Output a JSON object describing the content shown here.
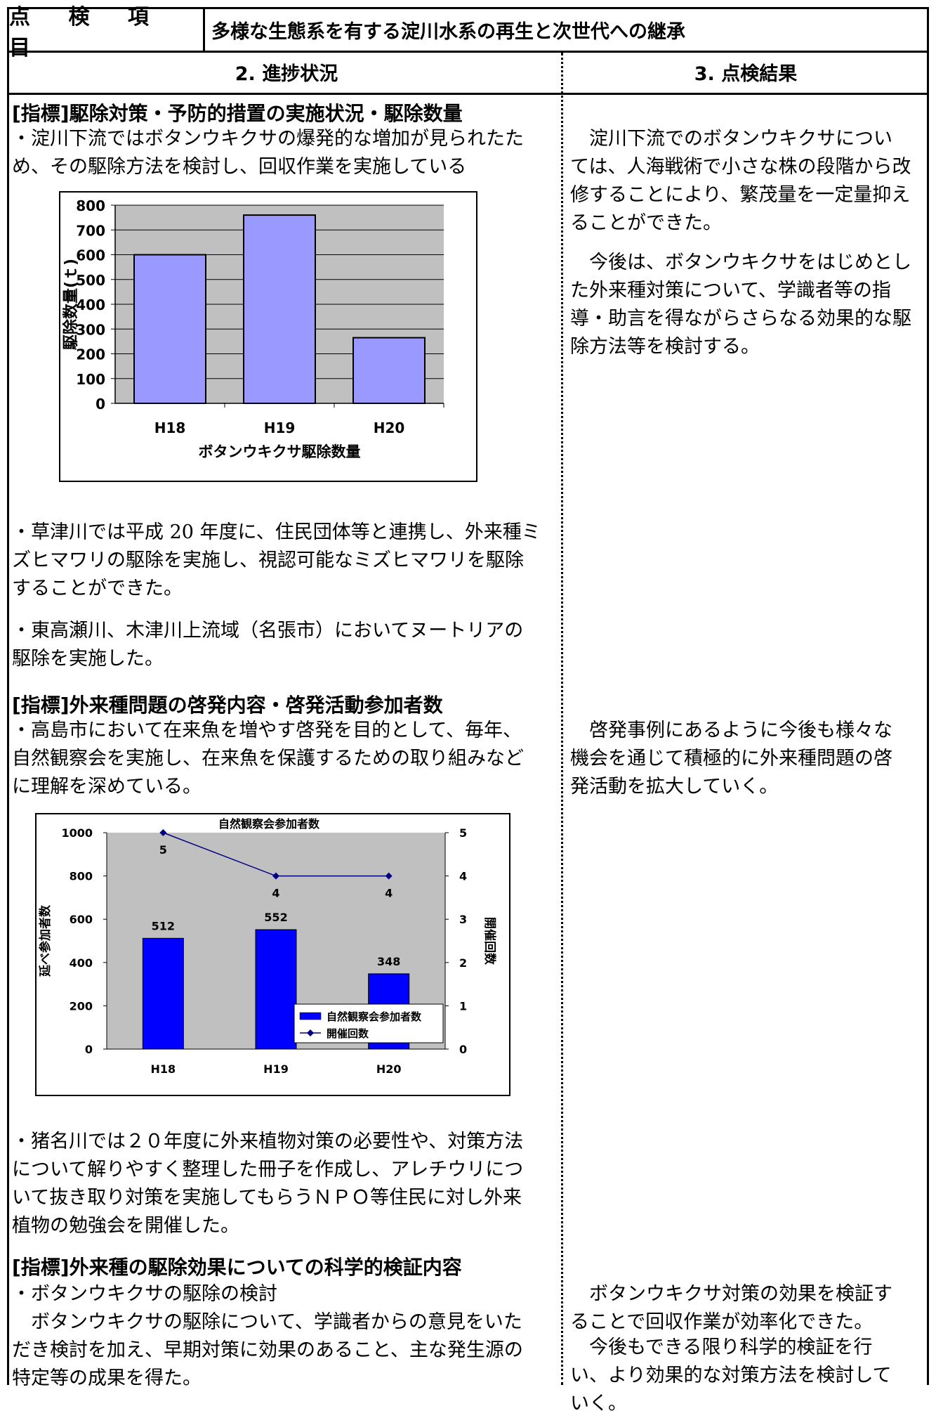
{
  "header": {
    "item_label": "点 検 項 目",
    "item_title": "多様な生態系を有する淀川水系の再生と次世代への継承",
    "col_progress": "2. 進捗状況",
    "col_result": "3. 点検結果"
  },
  "sections": [
    {
      "heading": "[指標]駆除対策・予防的措置の実施状況・駆除数量",
      "text1": "・淀川下流ではボタンウキクサの爆発的な増加が見られたた\nめ、その駆除方法を検討し、回収作業を実施している",
      "text2": "・草津川では平成 20 年度に、住民団体等と連携し、外来種ミ\nズヒマワリの駆除を実施し、視認可能なミズヒマワリを駆除\nすることができた。",
      "text3": "・東高瀬川、木津川上流域（名張市）においてヌートリアの\n駆除を実施した。",
      "result1": "　淀川下流でのボタンウキクサについ\nては、人海戦術で小さな株の段階から改\n修することにより、繁茂量を一定量抑え\nることができた。",
      "result2": "　今後は、ボタンウキクサをはじめとし\nた外来種対策について、学識者等の指\n導・助言を得ながらさらなる効果的な駆\n除方法等を検討する。"
    },
    {
      "heading": "[指標]外来種問題の啓発内容・啓発活動参加者数",
      "text1": "・高島市において在来魚を増やす啓発を目的として、毎年、\n自然観察会を実施し、在来魚を保護するための取り組みなど\nに理解を深めている。",
      "text2": "・猪名川では２０年度に外来植物対策の必要性や、対策方法\nについて解りやすく整理した冊子を作成し、アレチウリにつ\nいて抜き取り対策を実施してもらうＮＰＯ等住民に対し外来\n植物の勉強会を開催した。",
      "result1": "　啓発事例にあるように今後も様々な\n機会を通じて積極的に外来種問題の啓\n発活動を拡大していく。"
    },
    {
      "heading": "[指標]外来種の駆除効果についての科学的検証内容",
      "text1": "・ボタンウキクサの駆除の検討\n　ボタンウキクサの駆除について、学識者からの意見をいた\nだき検討を加え、早期対策に効果のあること、主な発生源の\n特定等の成果を得た。",
      "result1": "　ボタンウキクサ対策の効果を検証す\nることで回収作業が効率化できた。",
      "result2": "　今後もできる限り科学的検証を行\nい、より効果的な対策方法を検討して\nいく。"
    }
  ],
  "chart_data": [
    {
      "type": "bar",
      "title": "",
      "xlabel": "ボタンウキクサ駆除数量",
      "ylabel": "駆除数量(ｔ)",
      "categories": [
        "H18",
        "H19",
        "H20"
      ],
      "values": [
        600,
        760,
        265
      ],
      "ylim": [
        0,
        800
      ],
      "yticks": [
        "0",
        "100",
        "200",
        "300",
        "400",
        "500",
        "600",
        "700",
        "800"
      ],
      "bar_color": "#9999ff",
      "grid": true
    },
    {
      "type": "bar+line",
      "title": "自然観察会参加者数",
      "ylabel": "延べ参加者数",
      "y2label": "開催回数",
      "categories": [
        "H18",
        "H19",
        "H20"
      ],
      "yticks": [
        "0",
        "200",
        "400",
        "600",
        "800",
        "1000"
      ],
      "y2ticks": [
        "0",
        "1",
        "2",
        "3",
        "4",
        "5"
      ],
      "ylim": [
        0,
        1000
      ],
      "y2lim": [
        0,
        5
      ],
      "series": [
        {
          "name": "自然観察会参加者数",
          "type": "bar",
          "values": [
            512,
            552,
            348
          ],
          "labels": [
            "512",
            "552",
            "348"
          ],
          "color": "#0000ff"
        },
        {
          "name": "開催回数",
          "type": "line",
          "values": [
            5,
            4,
            4
          ],
          "labels": [
            "5",
            "4",
            "4"
          ],
          "color": "#000080"
        }
      ],
      "legend": "bottom-right",
      "background": "#c0c0c0"
    }
  ]
}
